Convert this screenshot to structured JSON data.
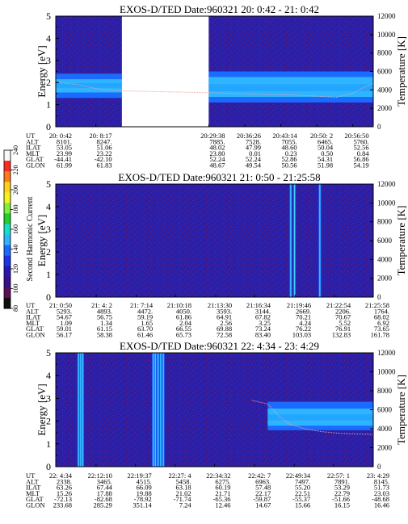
{
  "figure": {
    "colorbar": {
      "label": "Second Harmonic Current",
      "ticks": [
        "240",
        "220",
        "200",
        "180",
        "160",
        "140",
        "120",
        "100",
        "80"
      ],
      "colors": [
        "#f8f8f8",
        "#ff2a20",
        "#ff7a18",
        "#ffd21a",
        "#f4f31e",
        "#7ff03a",
        "#21cf2a",
        "#14e0c8",
        "#2fb4ff",
        "#1a6bff",
        "#1a34e8",
        "#2a17b0",
        "#3a1188",
        "#5a1158",
        "#101010"
      ]
    }
  },
  "chart_data": [
    {
      "type": "heatmap",
      "title": "EXOS-D/TED   Date:960321  20: 0:42 - 21: 0:42",
      "ylabel": "Energy [eV]",
      "ylabel_right": "Temperature [K]",
      "ylim": [
        0,
        5
      ],
      "ylim_right": [
        0,
        12000
      ],
      "yticks": [
        "0",
        "1",
        "2",
        "3",
        "4",
        "5"
      ],
      "yticks_right": [
        "0",
        "2000",
        "4000",
        "6000",
        "8000",
        "10000",
        "12000"
      ],
      "x_range_min": [
        0,
        60
      ],
      "data_gap_min": [
        [
          12.5,
          28.9
        ]
      ],
      "bands": [
        {
          "x0": 0,
          "x1": 12.5,
          "e_low": 1.3,
          "e_high": 2.4,
          "core_low": 1.55,
          "core_high": 2.15
        },
        {
          "x0": 28.9,
          "x1": 60,
          "e_low": 1.1,
          "e_high": 2.5,
          "core_low": 1.35,
          "core_high": 2.25
        }
      ],
      "spikes_min": [],
      "temperature_trace": [
        [
          0,
          4800
        ],
        [
          4,
          4600
        ],
        [
          8,
          4100
        ],
        [
          12.5,
          3900
        ],
        [
          29,
          3700
        ],
        [
          35,
          3600
        ],
        [
          40,
          3500
        ],
        [
          45,
          3450
        ],
        [
          50,
          3300
        ],
        [
          53,
          3200
        ],
        [
          56,
          3600
        ],
        [
          58,
          4200
        ],
        [
          60,
          4700
        ]
      ],
      "table": {
        "labels": [
          "UT",
          "ALT",
          "ILAT",
          "MLT",
          "GLAT",
          "GLON"
        ],
        "columns": [
          {
            "ut": "20: 0:42",
            "vals": [
              "8101.",
              "53.05",
              "23.99",
              "-44.41",
              "61.99"
            ]
          },
          {
            "ut": "20: 8:17",
            "vals": [
              "8247.",
              "51.06",
              "23.22",
              "-42.10",
              "61.83"
            ]
          },
          {
            "ut": "20:29:38",
            "vals": [
              "7885.",
              "48.02",
              "23.80",
              "52.24",
              "48.67"
            ]
          },
          {
            "ut": "20:36:26",
            "vals": [
              "7528.",
              "47.99",
              "0.01",
              "52.24",
              "49.54"
            ]
          },
          {
            "ut": "20:43:14",
            "vals": [
              "7055.",
              "48.60",
              "0.23",
              "52.86",
              "50.56"
            ]
          },
          {
            "ut": "20:50: 2",
            "vals": [
              "6465.",
              "50.04",
              "0.50",
              "54.31",
              "51.98"
            ]
          },
          {
            "ut": "20:56:50",
            "vals": [
              "5760.",
              "52.56",
              "0.84",
              "56.86",
              "54.19"
            ]
          }
        ]
      }
    },
    {
      "type": "heatmap",
      "title": "EXOS-D/TED   Date:960321  21: 0:50 - 21:25:58",
      "ylabel": "Energy [eV]",
      "ylabel_right": "Temperature [K]",
      "ylim": [
        0,
        5
      ],
      "ylim_right": [
        0,
        12000
      ],
      "yticks": [
        "0",
        "1",
        "2",
        "3",
        "4",
        "5"
      ],
      "yticks_right": [
        "0",
        "2000",
        "4000",
        "6000",
        "8000",
        "10000",
        "12000"
      ],
      "x_range_min": [
        0,
        25.13
      ],
      "data_gap_min": [],
      "bands": [],
      "spikes_min": [
        18.6,
        18.9,
        20.9
      ],
      "temperature_trace": [],
      "table": {
        "labels": [
          "UT",
          "ALT",
          "ILAT",
          "MLT",
          "GLAT",
          "GLON"
        ],
        "columns": [
          {
            "ut": "21: 0:50",
            "vals": [
              "5293.",
              "54.67",
              "1.09",
              "59.01",
              "56.17"
            ]
          },
          {
            "ut": "21: 4: 2",
            "vals": [
              "4893.",
              "56.75",
              "1.34",
              "61.15",
              "58.38"
            ]
          },
          {
            "ut": "21: 7:14",
            "vals": [
              "4472.",
              "59.19",
              "1.65",
              "63.70",
              "61.46"
            ]
          },
          {
            "ut": "21:10:18",
            "vals": [
              "4050.",
              "61.86",
              "2.04",
              "66.55",
              "65.73"
            ]
          },
          {
            "ut": "21:13:30",
            "vals": [
              "3593.",
              "64.91",
              "2.56",
              "69.88",
              "72.58"
            ]
          },
          {
            "ut": "21:16:34",
            "vals": [
              "3144.",
              "67.82",
              "3.25",
              "73.24",
              "83.40"
            ]
          },
          {
            "ut": "21:19:46",
            "vals": [
              "2669.",
              "70.21",
              "4.24",
              "76.22",
              "103.03"
            ]
          },
          {
            "ut": "21:22:54",
            "vals": [
              "2206.",
              "70.67",
              "5.52",
              "76.91",
              "132.83"
            ]
          },
          {
            "ut": "21:25:58",
            "vals": [
              "1764.",
              "68.02",
              "6.92",
              "73.65",
              "161.78"
            ]
          }
        ]
      }
    },
    {
      "type": "heatmap",
      "title": "EXOS-D/TED   Date:960321  22: 4:34 - 23: 4:29",
      "ylabel": "Energy [eV]",
      "ylabel_right": "Temperature [K]",
      "ylim": [
        0,
        5
      ],
      "ylim_right": [
        0,
        12000
      ],
      "yticks": [
        "0",
        "1",
        "2",
        "3",
        "4",
        "5"
      ],
      "yticks_right": [
        "0",
        "2000",
        "4000",
        "6000",
        "8000",
        "10000",
        "12000"
      ],
      "x_range_min": [
        0,
        59.92
      ],
      "data_gap_min": [],
      "bands": [
        {
          "x0": 40,
          "x1": 59.92,
          "e_low": 1.6,
          "e_high": 2.85,
          "core_low": 1.8,
          "core_high": 2.55
        }
      ],
      "spikes_min": [
        4.3,
        4.7,
        5.1,
        18.4,
        18.8,
        19.3,
        19.8,
        20.3
      ],
      "temperature_trace": [
        [
          37,
          7000
        ],
        [
          40,
          6600
        ],
        [
          42,
          5400
        ],
        [
          44,
          4500
        ],
        [
          47,
          4000
        ],
        [
          50,
          3700
        ],
        [
          54,
          3500
        ],
        [
          59.9,
          3400
        ]
      ],
      "table": {
        "labels": [
          "UT",
          "ALT",
          "ILAT",
          "MLT",
          "GLAT",
          "GLON"
        ],
        "columns": [
          {
            "ut": "22: 4:34",
            "vals": [
              "2338.",
              "63.26",
              "15.26",
              "-72.13",
              "233.68"
            ]
          },
          {
            "ut": "22:12:10",
            "vals": [
              "3465.",
              "67.44",
              "17.88",
              "-82.68",
              "285.29"
            ]
          },
          {
            "ut": "22:19:37",
            "vals": [
              "4515.",
              "66.09",
              "19.88",
              "-78.92",
              "351.14"
            ]
          },
          {
            "ut": "22:27: 4",
            "vals": [
              "5458.",
              "63.18",
              "21.02",
              "-71.74",
              "7.24"
            ]
          },
          {
            "ut": "22:34:32",
            "vals": [
              "6275.",
              "60.19",
              "21.71",
              "-65.36",
              "12.46"
            ]
          },
          {
            "ut": "22:42: 7",
            "vals": [
              "6963.",
              "57.48",
              "22.17",
              "-59.87",
              "14.67"
            ]
          },
          {
            "ut": "22:49:34",
            "vals": [
              "7497.",
              "55.20",
              "22.51",
              "-55.37",
              "15.66"
            ]
          },
          {
            "ut": "22:57: 1",
            "vals": [
              "7891.",
              "53.29",
              "22.79",
              "-51.66",
              "16.15"
            ]
          },
          {
            "ut": "23: 4:29",
            "vals": [
              "8145.",
              "51.73",
              "23.03",
              "-48.68",
              "16.46"
            ]
          }
        ]
      }
    }
  ]
}
